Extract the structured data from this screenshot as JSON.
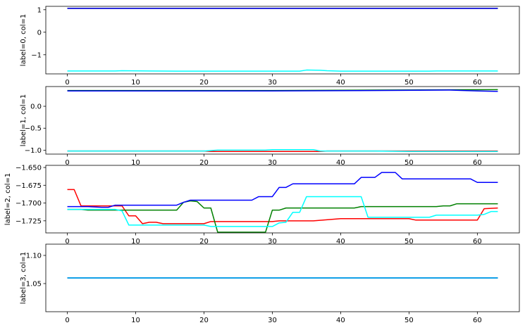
{
  "chart_data": [
    {
      "type": "line",
      "ylabel": "label=0, col=1",
      "xlim": [
        -3.15,
        66.15
      ],
      "ylim": [
        -1.85,
        1.15
      ],
      "xticks": [
        0,
        10,
        20,
        30,
        40,
        50,
        60
      ],
      "xtick_labels": [
        "0",
        "10",
        "20",
        "30",
        "40",
        "50",
        "60"
      ],
      "yticks": [
        1,
        0,
        -1
      ],
      "ytick_labels": [
        "1",
        "0",
        "−1"
      ],
      "series": [
        {
          "color": "#ff0000",
          "x": [
            0,
            63
          ],
          "y": [
            1.06,
            1.06
          ]
        },
        {
          "color": "#008000",
          "x": [
            0,
            63
          ],
          "y": [
            1.06,
            1.06
          ]
        },
        {
          "color": "#0000ff",
          "x": [
            0,
            63
          ],
          "y": [
            1.06,
            1.06
          ]
        },
        {
          "color": "#00ffff",
          "x": [
            0,
            7,
            8,
            12,
            16,
            34,
            35,
            37,
            38,
            40,
            53,
            54,
            63
          ],
          "y": [
            -1.72,
            -1.72,
            -1.71,
            -1.72,
            -1.73,
            -1.73,
            -1.68,
            -1.69,
            -1.71,
            -1.73,
            -1.73,
            -1.72,
            -1.72
          ]
        }
      ]
    },
    {
      "type": "line",
      "ylabel": "label=1, col=1",
      "xlim": [
        -3.15,
        66.15
      ],
      "ylim": [
        -1.09,
        0.45
      ],
      "xticks": [
        0,
        10,
        20,
        30,
        40,
        50,
        60
      ],
      "xtick_labels": [
        "0",
        "10",
        "20",
        "30",
        "40",
        "50",
        "60"
      ],
      "yticks": [
        0.0,
        -0.5,
        -1.0
      ],
      "ytick_labels": [
        "0.0",
        "−0.5",
        "−1.0"
      ],
      "series": [
        {
          "color": "#ff0000",
          "x": [
            0,
            20,
            21,
            37,
            38,
            63
          ],
          "y": [
            -1.02,
            -1.02,
            -1.03,
            -1.03,
            -1.02,
            -1.02
          ]
        },
        {
          "color": "#008000",
          "x": [
            0,
            30,
            45,
            63
          ],
          "y": [
            0.36,
            0.36,
            0.37,
            0.38
          ]
        },
        {
          "color": "#0000ff",
          "x": [
            0,
            30,
            45,
            56,
            60,
            63
          ],
          "y": [
            0.35,
            0.35,
            0.36,
            0.37,
            0.35,
            0.34
          ]
        },
        {
          "color": "#00ffff",
          "x": [
            0,
            20,
            22,
            29,
            30,
            36,
            37,
            45,
            50,
            63
          ],
          "y": [
            -1.02,
            -1.02,
            -1.0,
            -1.0,
            -0.99,
            -0.99,
            -1.02,
            -1.02,
            -1.03,
            -1.03
          ]
        }
      ]
    },
    {
      "type": "line",
      "ylabel": "label=2, col=1",
      "xlim": [
        -3.15,
        66.15
      ],
      "ylim": [
        -1.742,
        -1.647
      ],
      "xticks": [
        0,
        10,
        20,
        30,
        40,
        50,
        60
      ],
      "xtick_labels": [
        "0",
        "10",
        "20",
        "30",
        "40",
        "50",
        "60"
      ],
      "yticks": [
        -1.65,
        -1.675,
        -1.7,
        -1.725
      ],
      "ytick_labels": [
        "−1.650",
        "−1.675",
        "−1.700",
        "−1.725"
      ],
      "series": [
        {
          "color": "#ff0000",
          "x": [
            0,
            1,
            2,
            8,
            9,
            10,
            11,
            12,
            13,
            14,
            20,
            21,
            30,
            31,
            36,
            40,
            50,
            51,
            60,
            61,
            63
          ],
          "y": [
            -1.681,
            -1.681,
            -1.704,
            -1.704,
            -1.718,
            -1.718,
            -1.729,
            -1.727,
            -1.727,
            -1.729,
            -1.729,
            -1.726,
            -1.726,
            -1.725,
            -1.725,
            -1.722,
            -1.722,
            -1.724,
            -1.724,
            -1.708,
            -1.707
          ]
        },
        {
          "color": "#008000",
          "x": [
            0,
            2,
            3,
            16,
            17,
            18,
            19,
            20,
            21,
            22,
            29,
            30,
            31,
            32,
            42,
            43,
            54,
            55,
            56,
            57,
            63
          ],
          "y": [
            -1.709,
            -1.709,
            -1.71,
            -1.71,
            -1.699,
            -1.697,
            -1.698,
            -1.707,
            -1.707,
            -1.741,
            -1.741,
            -1.71,
            -1.71,
            -1.707,
            -1.707,
            -1.705,
            -1.705,
            -1.704,
            -1.704,
            -1.701,
            -1.701
          ]
        },
        {
          "color": "#0000ff",
          "x": [
            0,
            3,
            5,
            6,
            7,
            16,
            17,
            18,
            27,
            28,
            30,
            31,
            32,
            33,
            42,
            43,
            45,
            46,
            48,
            49,
            59,
            60,
            61,
            63
          ],
          "y": [
            -1.705,
            -1.705,
            -1.706,
            -1.706,
            -1.703,
            -1.703,
            -1.699,
            -1.696,
            -1.696,
            -1.691,
            -1.691,
            -1.678,
            -1.678,
            -1.673,
            -1.673,
            -1.664,
            -1.664,
            -1.657,
            -1.657,
            -1.666,
            -1.666,
            -1.671,
            -1.671,
            -1.671
          ]
        },
        {
          "color": "#00ffff",
          "x": [
            0,
            7,
            8,
            9,
            10,
            20,
            21,
            30,
            31,
            32,
            33,
            34,
            35,
            43,
            44,
            48,
            53,
            54,
            60,
            61,
            62,
            63
          ],
          "y": [
            -1.709,
            -1.709,
            -1.711,
            -1.731,
            -1.731,
            -1.731,
            -1.733,
            -1.733,
            -1.728,
            -1.727,
            -1.713,
            -1.713,
            -1.691,
            -1.691,
            -1.72,
            -1.72,
            -1.72,
            -1.717,
            -1.717,
            -1.716,
            -1.712,
            -1.712
          ]
        }
      ]
    },
    {
      "type": "line",
      "ylabel": "label=3, col=1",
      "xlim": [
        -3.15,
        66.15
      ],
      "ylim": [
        1.0,
        1.12
      ],
      "xticks": [
        0,
        10,
        20,
        30,
        40,
        50,
        60
      ],
      "xtick_labels": [
        "0",
        "10",
        "20",
        "30",
        "40",
        "50",
        "60"
      ],
      "yticks": [
        1.1,
        1.05
      ],
      "ytick_labels": [
        "1.10",
        "1.05"
      ],
      "series": [
        {
          "color": "#ff0000",
          "x": [
            0,
            63
          ],
          "y": [
            1.06,
            1.06
          ]
        },
        {
          "color": "#008000",
          "x": [
            0,
            63
          ],
          "y": [
            1.06,
            1.06
          ]
        },
        {
          "color": "#0000ff",
          "x": [
            0,
            63
          ],
          "y": [
            1.06,
            1.06
          ]
        },
        {
          "color": "#00bfff",
          "x": [
            0,
            63
          ],
          "y": [
            1.06,
            1.06
          ]
        }
      ]
    }
  ]
}
